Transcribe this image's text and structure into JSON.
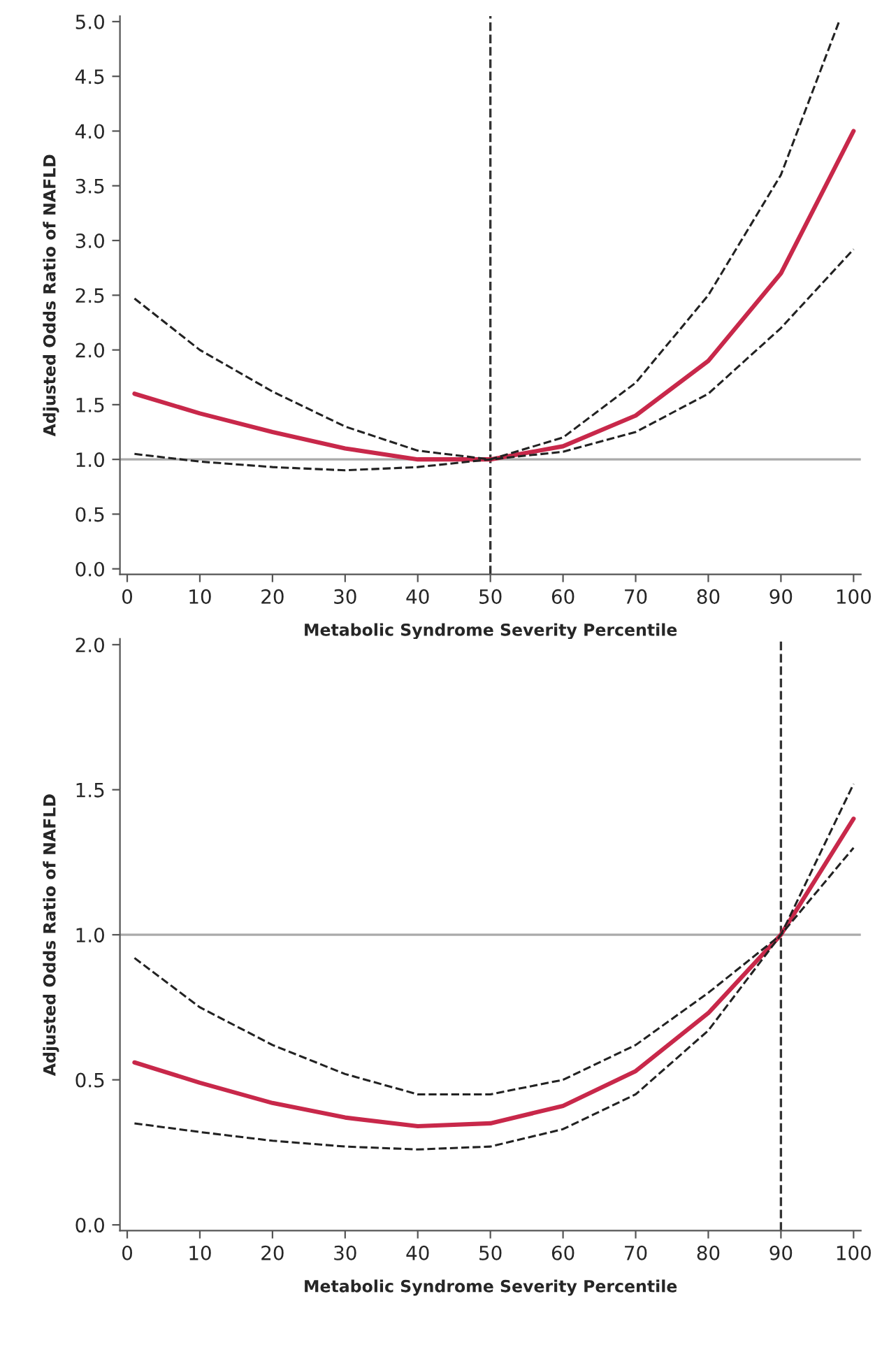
{
  "chart_data": [
    {
      "type": "line",
      "xlabel": "Metabolic Syndrome Severity Percentile",
      "ylabel": "Adjusted Odds Ratio of NAFLD",
      "xlim": [
        -1,
        101
      ],
      "ylim": [
        -0.05,
        5.05
      ],
      "xticks": [
        0,
        10,
        20,
        30,
        40,
        50,
        60,
        70,
        80,
        90,
        100
      ],
      "yticks": [
        {
          "value": 0,
          "label": "0.0"
        },
        {
          "value": 0.5,
          "label": "0.5"
        },
        {
          "value": 1,
          "label": "1.0"
        },
        {
          "value": 1.5,
          "label": "1.5"
        },
        {
          "value": 2,
          "label": "2.0"
        },
        {
          "value": 2.5,
          "label": "2.5"
        },
        {
          "value": 3,
          "label": "3.0"
        },
        {
          "value": 3.5,
          "label": "3.5"
        },
        {
          "value": 4,
          "label": "4.0"
        },
        {
          "value": 4.5,
          "label": "4.5"
        },
        {
          "value": 5,
          "label": "5.0"
        }
      ],
      "grid": false,
      "legend": false,
      "ref_lines": [
        {
          "axis": "y",
          "value": 1,
          "color": "#aaaaaa",
          "line_style": "solid"
        },
        {
          "axis": "x",
          "value": 50,
          "color": "#333333",
          "line_style": "dashed"
        }
      ],
      "series": [
        {
          "color": "#c8284a",
          "line_style": "solid",
          "x": [
            1,
            10,
            20,
            30,
            40,
            50,
            60,
            70,
            80,
            90,
            100
          ],
          "values": [
            1.6,
            1.42,
            1.25,
            1.1,
            1.0,
            1.0,
            1.12,
            1.4,
            1.9,
            2.7,
            4.0
          ]
        },
        {
          "color": "#222222",
          "line_style": "dashed",
          "x": [
            1,
            10,
            20,
            30,
            40,
            50,
            60,
            70,
            80,
            90,
            98
          ],
          "values": [
            2.47,
            2.0,
            1.62,
            1.3,
            1.08,
            1.0,
            1.2,
            1.7,
            2.5,
            3.6,
            5.0
          ]
        },
        {
          "color": "#222222",
          "line_style": "dashed",
          "x": [
            1,
            10,
            20,
            30,
            40,
            50,
            60,
            70,
            80,
            90,
            100
          ],
          "values": [
            1.05,
            0.98,
            0.93,
            0.9,
            0.93,
            1.0,
            1.07,
            1.25,
            1.6,
            2.2,
            2.92
          ]
        }
      ]
    },
    {
      "type": "line",
      "xlabel": "Metabolic Syndrome Severity Percentile",
      "ylabel": "Adjusted Odds Ratio of NAFLD",
      "xlim": [
        -1,
        101
      ],
      "ylim": [
        -0.02,
        2.02
      ],
      "xticks": [
        0,
        10,
        20,
        30,
        40,
        50,
        60,
        70,
        80,
        90,
        100
      ],
      "yticks": [
        {
          "value": 0,
          "label": "0.0"
        },
        {
          "value": 0.5,
          "label": "0.5"
        },
        {
          "value": 1,
          "label": "1.0"
        },
        {
          "value": 1.5,
          "label": "1.5"
        },
        {
          "value": 2,
          "label": "2.0"
        }
      ],
      "grid": false,
      "legend": false,
      "ref_lines": [
        {
          "axis": "y",
          "value": 1,
          "color": "#aaaaaa",
          "line_style": "solid"
        },
        {
          "axis": "x",
          "value": 90,
          "color": "#333333",
          "line_style": "dashed"
        }
      ],
      "series": [
        {
          "color": "#c8284a",
          "line_style": "solid",
          "x": [
            1,
            10,
            20,
            30,
            40,
            50,
            60,
            70,
            80,
            90,
            100
          ],
          "values": [
            0.56,
            0.49,
            0.42,
            0.37,
            0.34,
            0.35,
            0.41,
            0.53,
            0.73,
            1.0,
            1.4
          ]
        },
        {
          "color": "#222222",
          "line_style": "dashed",
          "x": [
            1,
            10,
            20,
            30,
            40,
            50,
            60,
            70,
            80,
            90,
            100
          ],
          "values": [
            0.92,
            0.75,
            0.62,
            0.52,
            0.45,
            0.45,
            0.5,
            0.62,
            0.8,
            1.0,
            1.52
          ]
        },
        {
          "color": "#222222",
          "line_style": "dashed",
          "x": [
            1,
            10,
            20,
            30,
            40,
            50,
            60,
            70,
            80,
            90,
            100
          ],
          "values": [
            0.35,
            0.32,
            0.29,
            0.27,
            0.26,
            0.27,
            0.33,
            0.45,
            0.67,
            1.0,
            1.3
          ]
        }
      ]
    }
  ]
}
